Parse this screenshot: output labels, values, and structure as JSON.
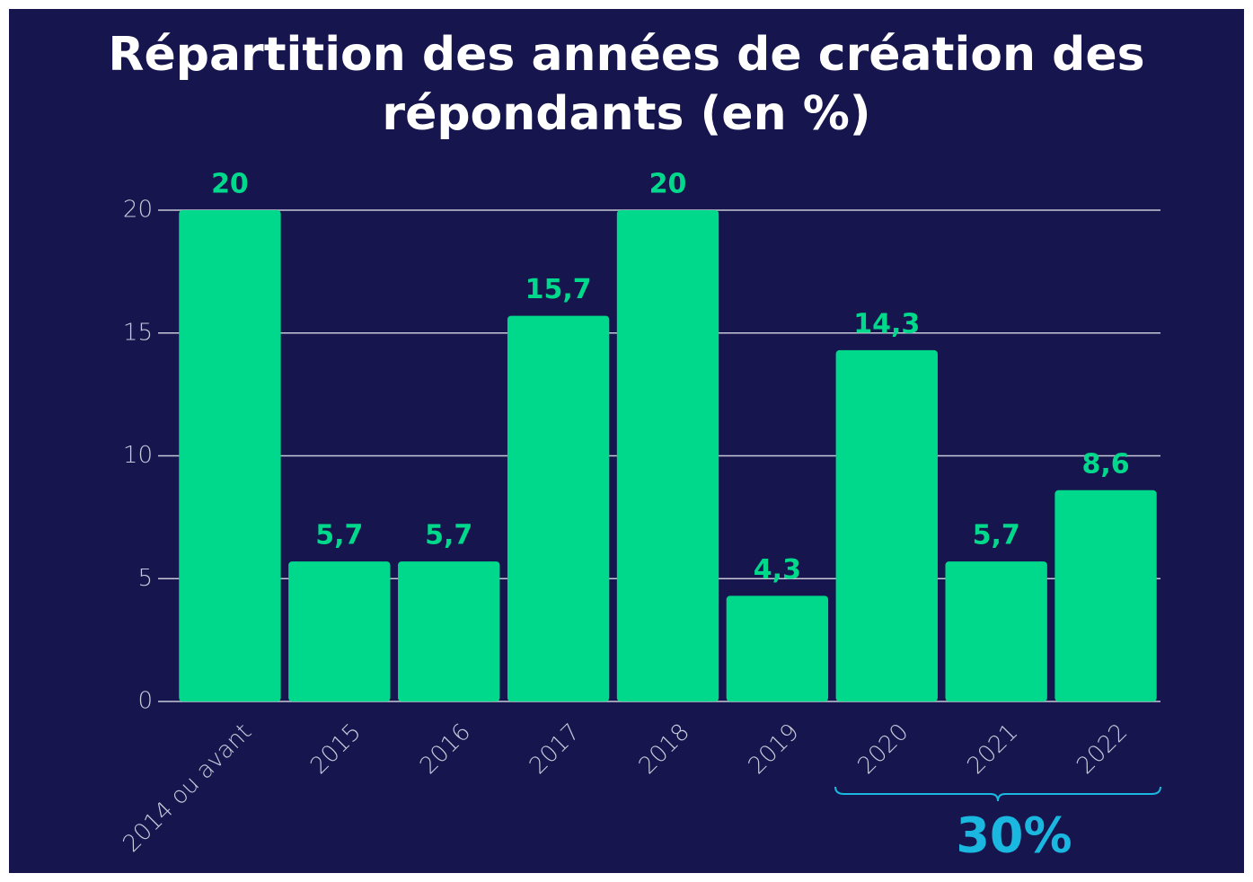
{
  "chart_data": {
    "type": "bar",
    "title": "Répartition des années de création des répondants (en %)",
    "categories": [
      "2014 ou avant",
      "2015",
      "2016",
      "2017",
      "2018",
      "2019",
      "2020",
      "2021",
      "2022"
    ],
    "values": [
      20,
      5.7,
      5.7,
      15.7,
      20,
      4.3,
      14.3,
      5.7,
      8.6
    ],
    "value_labels": [
      "20",
      "5,7",
      "5,7",
      "15,7",
      "20",
      "4,3",
      "14,3",
      "5,7",
      "8,6"
    ],
    "color": "#00d98b",
    "ylim": [
      0,
      20
    ],
    "yticks": [
      0,
      5,
      10,
      15,
      20
    ],
    "grid": true,
    "annotation": "30%"
  }
}
